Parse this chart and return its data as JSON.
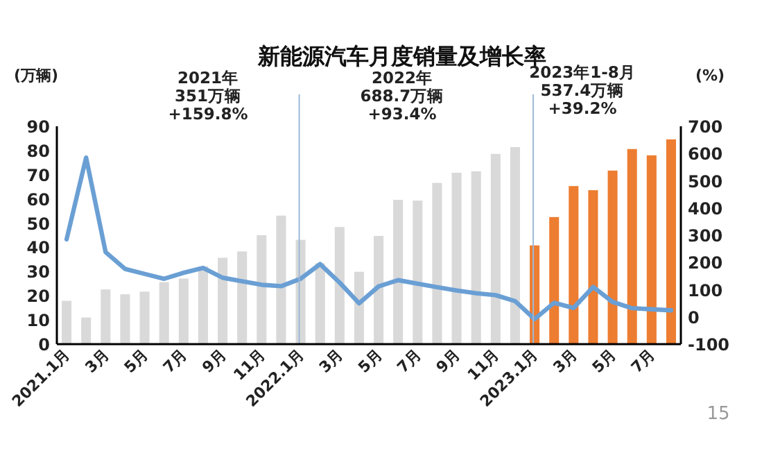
{
  "chart_data": {
    "type": "bar",
    "title": "新能源汽车月度销量及增长率",
    "categories": [
      "2021.1月",
      null,
      "3月",
      null,
      "5月",
      null,
      "7月",
      null,
      "9月",
      null,
      "11月",
      null,
      "2022.1月",
      null,
      "3月",
      null,
      "5月",
      null,
      "7月",
      null,
      "9月",
      null,
      "11月",
      null,
      "2023.1月",
      null,
      "3月",
      null,
      "5月",
      null,
      "7月",
      null
    ],
    "series": [
      {
        "colors": [
          "#d9d9d9",
          "#d9d9d9",
          "#d9d9d9",
          "#d9d9d9",
          "#d9d9d9",
          "#d9d9d9",
          "#d9d9d9",
          "#d9d9d9",
          "#d9d9d9",
          "#d9d9d9",
          "#d9d9d9",
          "#d9d9d9",
          "#d9d9d9",
          "#d9d9d9",
          "#d9d9d9",
          "#d9d9d9",
          "#d9d9d9",
          "#d9d9d9",
          "#d9d9d9",
          "#d9d9d9",
          "#d9d9d9",
          "#d9d9d9",
          "#d9d9d9",
          "#d9d9d9",
          "#ed7d31",
          "#ed7d31",
          "#ed7d31",
          "#ed7d31",
          "#ed7d31",
          "#ed7d31",
          "#ed7d31",
          "#ed7d31"
        ],
        "values": [
          17.9,
          11.0,
          22.6,
          20.6,
          21.7,
          25.6,
          27.1,
          32.1,
          35.7,
          38.3,
          45.0,
          53.1,
          43.1,
          33.4,
          48.4,
          29.9,
          44.7,
          59.6,
          59.3,
          66.6,
          70.8,
          71.4,
          78.6,
          81.4,
          40.8,
          52.5,
          65.3,
          63.6,
          71.7,
          80.6,
          78.0,
          84.6
        ]
      },
      {
        "type": "line",
        "axis": "y2",
        "color": "#6a9fd4",
        "values": [
          285,
          585,
          238,
          176,
          158,
          140,
          162,
          180,
          144,
          131,
          118,
          113,
          140,
          194,
          126,
          50,
          112,
          135,
          122,
          109,
          97,
          87,
          80,
          58,
          -8,
          52,
          33,
          110,
          55,
          32,
          28,
          24
        ]
      }
    ],
    "ylabel": "(万辆)",
    "y2label": "(%)",
    "ylim": [
      0,
      90
    ],
    "yticks": [
      0,
      10,
      20,
      30,
      40,
      50,
      60,
      70,
      80,
      90
    ],
    "y2lim": [
      -100,
      700
    ],
    "y2ticks": [
      -100,
      0,
      100,
      200,
      300,
      400,
      500,
      600,
      700
    ],
    "ref_lines": [
      {
        "axis": "x",
        "value": "2022.1月",
        "color": "#9db8d6"
      },
      {
        "axis": "x",
        "value": "2023.1月",
        "color": "#9db8d6"
      }
    ],
    "annotations": [
      "2021年\n351万辆\n+159.8%",
      "2022年\n688.7万辆\n+93.4%",
      "2023年1-8月\n537.4万辆\n+39.2%",
      "15"
    ],
    "grid": false
  }
}
